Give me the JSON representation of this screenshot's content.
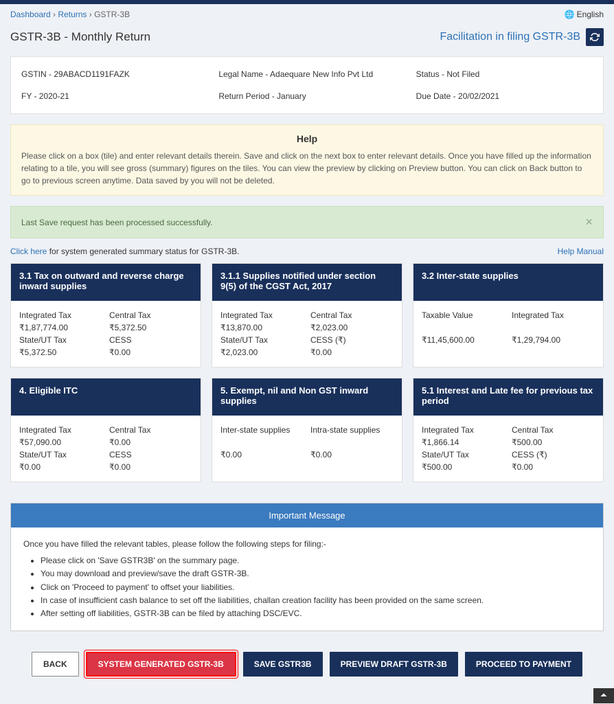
{
  "breadcrumb": {
    "dashboard": "Dashboard",
    "returns": "Returns",
    "current": "GSTR-3B"
  },
  "language": "English",
  "page_title": "GSTR-3B - Monthly Return",
  "facilitation_link": "Facilitation in filing GSTR-3B",
  "info": {
    "gstin_label": "GSTIN - 29ABACD1191FAZK",
    "legal_name": "Legal Name - Adaequare New Info Pvt Ltd",
    "status": "Status - Not Filed",
    "fy": "FY - 2020-21",
    "return_period": "Return Period - January",
    "due_date": "Due Date - 20/02/2021"
  },
  "help": {
    "title": "Help",
    "body": "Please click on a box (tile) and enter relevant details therein. Save and click on the next box to enter relevant details. Once you have filled up the information relating to a tile, you will see gross (summary) figures on the tiles. You can view the preview by clicking on Preview button. You can click on Back button to go to previous screen anytime. Data saved by you will not be deleted."
  },
  "success_alert": "Last Save request has been processed successfully.",
  "summary_link": {
    "click": "Click here",
    "text": " for system generated summary status for GSTR-3B."
  },
  "help_manual": "Help Manual",
  "tiles": [
    {
      "title": "3.1 Tax on outward and reverse charge inward supplies",
      "rows": [
        {
          "l1": "Integrated Tax",
          "l2": "Central Tax",
          "v1": "₹1,87,774.00",
          "v2": "₹5,372.50"
        },
        {
          "l1": "State/UT Tax",
          "l2": "CESS",
          "v1": "₹5,372.50",
          "v2": "₹0.00"
        }
      ]
    },
    {
      "title": "3.1.1 Supplies notified under section 9(5) of the CGST Act, 2017",
      "rows": [
        {
          "l1": "Integrated Tax",
          "l2": "Central Tax",
          "v1": "₹13,870.00",
          "v2": "₹2,023.00"
        },
        {
          "l1": "State/UT Tax",
          "l2": "CESS (₹)",
          "v1": "₹2,023.00",
          "v2": "₹0.00"
        }
      ]
    },
    {
      "title": "3.2 Inter-state supplies",
      "rows": [
        {
          "l1": "Taxable Value",
          "l2": "Integrated Tax",
          "v1": "₹11,45,600.00",
          "v2": "₹1,29,794.00"
        }
      ]
    },
    {
      "title": "4. Eligible ITC",
      "rows": [
        {
          "l1": "Integrated Tax",
          "l2": "Central Tax",
          "v1": "₹57,090.00",
          "v2": "₹0.00"
        },
        {
          "l1": "State/UT Tax",
          "l2": "CESS",
          "v1": "₹0.00",
          "v2": "₹0.00"
        }
      ]
    },
    {
      "title": "5. Exempt, nil and Non GST inward supplies",
      "rows": [
        {
          "l1": "Inter-state supplies",
          "l2": "Intra-state supplies",
          "v1": "₹0.00",
          "v2": "₹0.00"
        }
      ]
    },
    {
      "title": "5.1 Interest and Late fee for previous tax period",
      "rows": [
        {
          "l1": "Integrated Tax",
          "l2": "Central Tax",
          "v1": "₹1,866.14",
          "v2": "₹500.00"
        },
        {
          "l1": "State/UT Tax",
          "l2": "CESS (₹)",
          "v1": "₹500.00",
          "v2": "₹0.00"
        }
      ]
    }
  ],
  "important_msg": {
    "header": "Important Message",
    "intro": "Once you have filled the relevant tables, please follow the following steps for filing:-",
    "items": [
      "Please click on 'Save GSTR3B' on the summary page.",
      "You may download and preview/save the draft GSTR-3B.",
      "Click on 'Proceed to payment' to offset your liabilities.",
      "In case of insufficient cash balance to set off the liabilities, challan creation facility has been provided on the same screen.",
      "After setting off liabilities, GSTR-3B can be filed by attaching DSC/EVC."
    ]
  },
  "buttons": {
    "back": "BACK",
    "system_generated": "SYSTEM GENERATED GSTR-3B",
    "save": "SAVE GSTR3B",
    "preview": "PREVIEW DRAFT GSTR-3B",
    "proceed": "PROCEED TO PAYMENT"
  }
}
